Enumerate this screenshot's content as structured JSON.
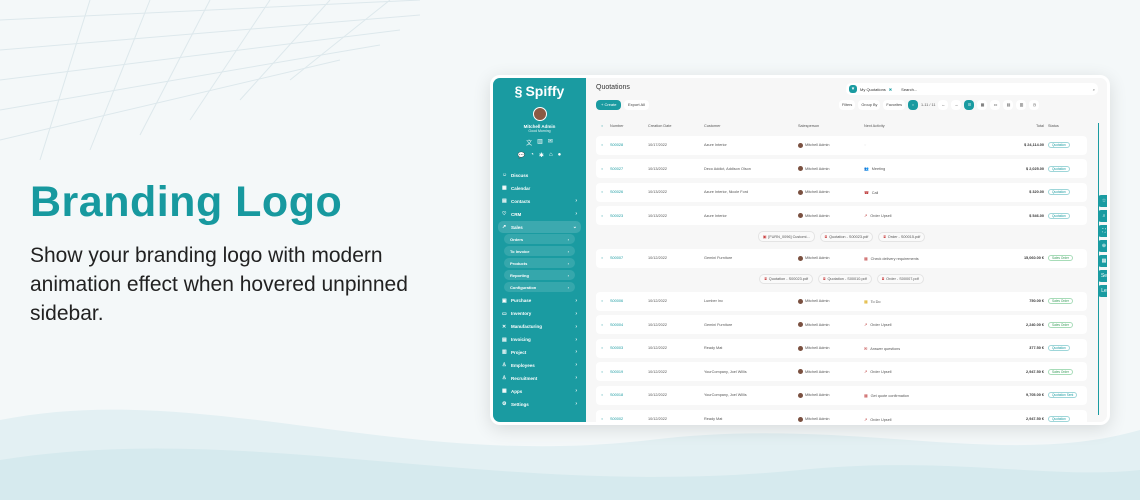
{
  "hero": {
    "title": "Branding Logo",
    "description": "Show your branding logo with modern animation effect when hovered unpinned sidebar."
  },
  "colors": {
    "accent": "#1a9ba1"
  },
  "sidebar": {
    "logo": "Spiffy",
    "user": "Mitchell Admin",
    "greeting": "Good Morning",
    "items": [
      {
        "label": "Discuss",
        "icon": "chat-icon"
      },
      {
        "label": "Calendar",
        "icon": "calendar-icon"
      },
      {
        "label": "Contacts",
        "icon": "contacts-icon"
      },
      {
        "label": "CRM",
        "icon": "handshake-icon"
      },
      {
        "label": "Sales",
        "icon": "chart-icon"
      }
    ],
    "sales_sub": [
      "Orders",
      "To Invoice",
      "Products",
      "Reporting",
      "Configuration"
    ],
    "items2": [
      {
        "label": "Purchase",
        "icon": "cart-icon"
      },
      {
        "label": "Inventory",
        "icon": "box-icon"
      },
      {
        "label": "Manufacturing",
        "icon": "tools-icon"
      },
      {
        "label": "Invoicing",
        "icon": "invoice-icon"
      },
      {
        "label": "Project",
        "icon": "project-icon"
      },
      {
        "label": "Employees",
        "icon": "people-icon"
      },
      {
        "label": "Recruitment",
        "icon": "person-search-icon"
      },
      {
        "label": "Apps",
        "icon": "apps-icon"
      },
      {
        "label": "Settings",
        "icon": "gear-icon"
      }
    ]
  },
  "header": {
    "title": "Quotations",
    "filter": "My Quotations",
    "search_placeholder": "Search...",
    "create": "+ Create",
    "export": "Export All",
    "filters": "Filters",
    "group_by": "Group By",
    "favorites": "Favorites",
    "pager": "1-11 / 11"
  },
  "table": {
    "columns": [
      "Number",
      "Creation Date",
      "Customer",
      "Salesperson",
      "Next Activity",
      "Total",
      "Status"
    ],
    "rows": [
      {
        "number": "S00028",
        "date": "10/17/2022",
        "customer": "Azure Interior",
        "salesperson": "Mitchell Admin",
        "activity": "",
        "total": "$ 24,114.00",
        "status": "Quotation"
      },
      {
        "number": "S00027",
        "date": "10/13/2022",
        "customer": "Deco Addict, Addison Olson",
        "salesperson": "Mitchell Admin",
        "activity": "Meeting",
        "total": "$ 2,025.00",
        "status": "Quotation"
      },
      {
        "number": "S00026",
        "date": "10/13/2022",
        "customer": "Azure Interior, Nicole Ford",
        "salesperson": "Mitchell Admin",
        "activity": "Call",
        "total": "$ 320.00",
        "status": "Quotation"
      },
      {
        "number": "S00023",
        "date": "10/13/2022",
        "customer": "Azure Interior",
        "salesperson": "Mitchell Admin",
        "activity": "Order Upsell",
        "total": "$ 546.00",
        "status": "Quotation",
        "attachments": [
          "[FURN_0096] Customi...",
          "Quotation - S00023.pdf",
          "Order - S00015.pdf"
        ]
      },
      {
        "number": "S00007",
        "date": "10/12/2022",
        "customer": "Gemini Furniture",
        "salesperson": "Mitchell Admin",
        "activity": "Check delivery requirements",
        "total": "15,060.00 €",
        "status": "Sales Order",
        "attachments": [
          "Quotation - S00023.pdf",
          "Quotation - S00010.pdf",
          "Order - S00007.pdf"
        ]
      },
      {
        "number": "S00006",
        "date": "10/12/2022",
        "customer": "Lumber Inc",
        "salesperson": "Mitchell Admin",
        "activity": "To Do",
        "total": "750.00 €",
        "status": "Sales Order"
      },
      {
        "number": "S00004",
        "date": "10/12/2022",
        "customer": "Gemini Furniture",
        "salesperson": "Mitchell Admin",
        "activity": "Order Upsell",
        "total": "2,240.00 €",
        "status": "Sales Order"
      },
      {
        "number": "S00003",
        "date": "10/12/2022",
        "customer": "Ready Mat",
        "salesperson": "Mitchell Admin",
        "activity": "Answer questions",
        "total": "377.50 €",
        "status": "Quotation"
      },
      {
        "number": "S00019",
        "date": "10/12/2022",
        "customer": "YourCompany, Joel Willis",
        "salesperson": "Mitchell Admin",
        "activity": "Order Upsell",
        "total": "2,947.50 €",
        "status": "Sales Order"
      },
      {
        "number": "S00018",
        "date": "10/12/2022",
        "customer": "YourCompany, Joel Willis",
        "salesperson": "Mitchell Admin",
        "activity": "Get quote confirmation",
        "total": "9,705.00 €",
        "status": "Quotation Sent"
      },
      {
        "number": "S00002",
        "date": "10/12/2022",
        "customer": "Ready Mat",
        "salesperson": "Mitchell Admin",
        "activity": "Order Upsell",
        "total": "2,947.50 €",
        "status": "Quotation"
      }
    ]
  },
  "float_buttons": [
    "☆",
    "⌕",
    "⛶",
    "⊕",
    "▦",
    "Se",
    "Le"
  ]
}
